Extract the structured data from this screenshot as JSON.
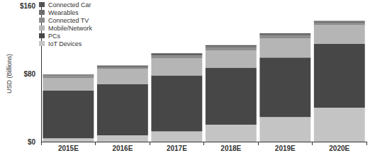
{
  "chart_data": {
    "type": "bar",
    "stacked": true,
    "grid": false,
    "legend": "upper left",
    "y_label": "USD (Billions)",
    "categories": [
      "2015E",
      "2016E",
      "2017E",
      "2018E",
      "2019E",
      "2020E"
    ],
    "ylim": [
      0,
      160
    ],
    "yticks": [
      {
        "value": 0,
        "label": "$0"
      },
      {
        "value": 80,
        "label": "$80"
      },
      {
        "value": 160,
        "label": "$160"
      }
    ],
    "series": [
      {
        "name": "IoT Devices",
        "color": "#c4c4c4",
        "values": [
          4,
          7.5,
          12,
          20,
          29,
          40
        ]
      },
      {
        "name": "PCs",
        "color": "#474747",
        "values": [
          56,
          60,
          66,
          67,
          70,
          75
        ]
      },
      {
        "name": "Mobile/Network",
        "color": "#b5b5b5",
        "values": [
          15,
          18,
          20,
          20.5,
          22.5,
          22.5
        ]
      },
      {
        "name": "Connected TV",
        "color": "#8c8c8c",
        "values": [
          2,
          2,
          3,
          3,
          3,
          2.5
        ]
      },
      {
        "name": "Wearables",
        "color": "#6e6e6e",
        "values": [
          1,
          1,
          1.5,
          1.5,
          1.5,
          1
        ]
      },
      {
        "name": "Connected Car",
        "color": "#545454",
        "values": [
          1,
          1,
          1.5,
          1.5,
          1.5,
          1
        ]
      }
    ]
  }
}
